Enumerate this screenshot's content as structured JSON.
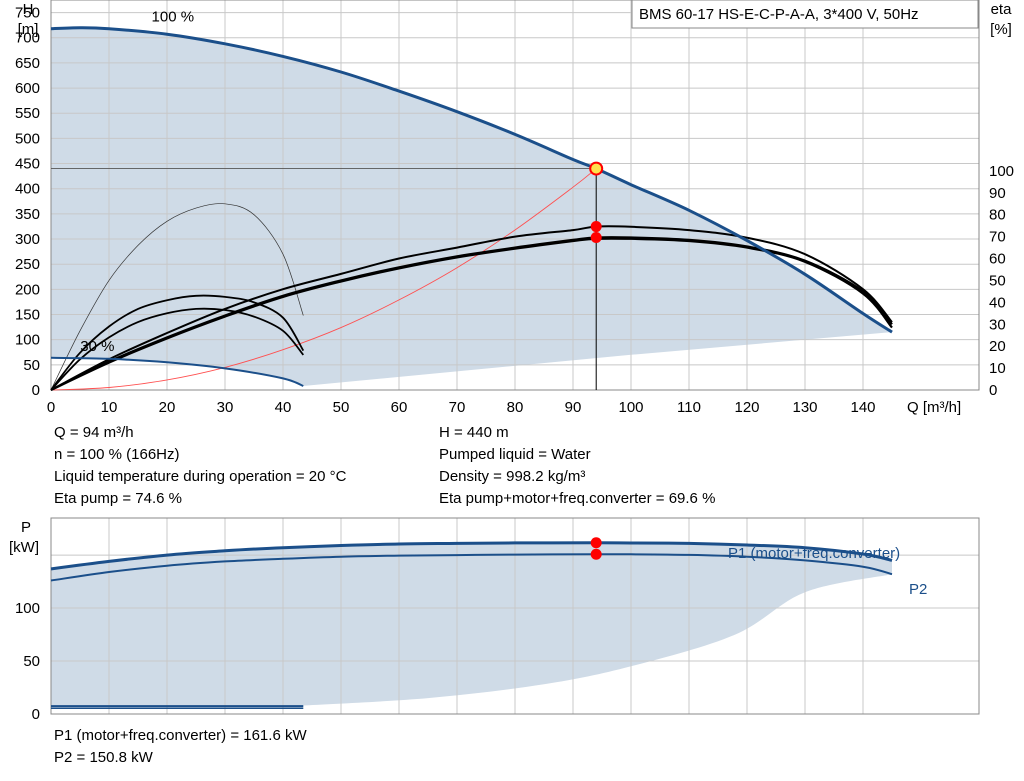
{
  "title_box": "BMS 60-17 HS-E-C-P-A-A, 3*400 V, 50Hz",
  "info": {
    "left": [
      "Q = 94 m³/h",
      "n = 100 % (166Hz)",
      "Liquid temperature during operation = 20 °C",
      "Eta pump = 74.6 %"
    ],
    "right": [
      "H = 440 m",
      "Pumped liquid = Water",
      "Density = 998.2 kg/m³",
      "Eta pump+motor+freq.converter = 69.6 %"
    ],
    "power": [
      "P1 (motor+freq.converter) = 161.6 kW",
      "P2 = 150.8 kW"
    ]
  },
  "colors": {
    "curve": "#1b4f8a",
    "area": "#cfdbe7",
    "grid": "#c8c8c8",
    "marker": "#ff0000",
    "system": "#ff5050"
  },
  "chart_data": [
    {
      "type": "line",
      "title": "BMS 60-17 HS-E-C-P-A-A, 3*400 V, 50Hz",
      "xlabel": "Q [m³/h]",
      "ylabel": "H [m]",
      "ylabel_unit": "[m]",
      "ylabel_name": "H",
      "y2label_name": "eta",
      "y2label_unit": "[%]",
      "xlim": [
        0,
        160
      ],
      "ylim": [
        0,
        775
      ],
      "y2lim": [
        0,
        178
      ],
      "xticks": [
        0,
        10,
        20,
        30,
        40,
        50,
        60,
        70,
        80,
        90,
        100,
        110,
        120,
        130,
        140
      ],
      "yticks": [
        0,
        50,
        100,
        150,
        200,
        250,
        300,
        350,
        400,
        450,
        500,
        550,
        600,
        650,
        700,
        750
      ],
      "y2ticks": [
        0,
        10,
        20,
        30,
        40,
        50,
        60,
        70,
        80,
        90,
        100
      ],
      "grid": true,
      "annotations": [
        {
          "text": "100 %",
          "x": 21,
          "y": 740
        },
        {
          "text": "30 %",
          "x": 8,
          "y": 85
        }
      ],
      "duty_point": {
        "x": 94,
        "y": 440
      },
      "eta_points": [
        {
          "x": 94,
          "y": 74.6
        },
        {
          "x": 94,
          "y": 69.6
        }
      ],
      "series": [
        {
          "role": "head_max",
          "axis": "left",
          "x": [
            0,
            5,
            10,
            20,
            30,
            40,
            50,
            60,
            70,
            80,
            90,
            94,
            100,
            110,
            120,
            130,
            140,
            145
          ],
          "y": [
            718,
            720,
            718,
            707,
            688,
            663,
            632,
            594,
            553,
            508,
            458,
            440,
            408,
            357,
            297,
            230,
            152,
            115
          ]
        },
        {
          "role": "head_min",
          "axis": "left",
          "x": [
            0,
            10,
            20,
            30,
            40,
            43.5
          ],
          "y": [
            64,
            62,
            55,
            43,
            23,
            8
          ]
        },
        {
          "role": "system_curve",
          "axis": "left",
          "x": [
            0,
            10,
            20,
            30,
            40,
            50,
            60,
            70,
            80,
            90,
            94
          ],
          "y": [
            0,
            5,
            20,
            45,
            80,
            124,
            179,
            243,
            318,
            403,
            440
          ]
        },
        {
          "role": "eta_pump_max",
          "axis": "right",
          "x": [
            0,
            10,
            20,
            30,
            40,
            50,
            60,
            70,
            80,
            90,
            94,
            100,
            110,
            120,
            130,
            140,
            145
          ],
          "y": [
            0,
            14,
            26,
            37,
            46,
            53,
            60,
            65,
            70,
            73,
            74.6,
            74.5,
            73,
            69.5,
            62,
            46,
            31
          ]
        },
        {
          "role": "eta_total_max",
          "axis": "right",
          "x": [
            0,
            10,
            20,
            30,
            40,
            50,
            60,
            70,
            80,
            90,
            94,
            100,
            110,
            120,
            130,
            140,
            145
          ],
          "y": [
            0,
            13,
            24,
            34,
            43,
            50,
            56,
            61,
            65,
            68.5,
            69.6,
            69.6,
            68.5,
            65.5,
            59,
            45,
            30
          ]
        },
        {
          "role": "eta_total_max_inner",
          "axis": "right",
          "x": [
            0,
            10,
            20,
            30,
            40,
            50,
            60,
            70,
            80,
            90,
            94,
            100,
            110,
            120,
            130,
            140,
            145
          ],
          "y": [
            0,
            12.5,
            23.5,
            33.5,
            42.5,
            49.5,
            55.5,
            60.5,
            64.5,
            68,
            69,
            69,
            68,
            65,
            58.5,
            44,
            28.5
          ]
        },
        {
          "role": "eta_pump_min",
          "axis": "right",
          "x": [
            0,
            5,
            10,
            15,
            20,
            25,
            30,
            35,
            40,
            43.5
          ],
          "y": [
            0,
            17,
            29,
            37,
            41,
            43,
            42.5,
            40,
            33,
            18
          ]
        },
        {
          "role": "eta_total_min",
          "axis": "right",
          "x": [
            0,
            5,
            10,
            15,
            20,
            25,
            30,
            35,
            40,
            43.5
          ],
          "y": [
            0,
            14,
            24,
            31,
            35,
            37,
            36.5,
            33.5,
            27,
            16
          ]
        },
        {
          "role": "eta_thin",
          "axis": "right",
          "x": [
            0,
            5,
            10,
            15,
            20,
            25,
            30,
            35,
            40,
            43.5
          ],
          "y": [
            0,
            27,
            50,
            66,
            77,
            83,
            85,
            80,
            62,
            34
          ]
        }
      ]
    },
    {
      "type": "line",
      "xlabel": "",
      "ylabel_name": "P",
      "ylabel_unit": "[kW]",
      "xlim": [
        0,
        160
      ],
      "ylim": [
        0,
        185
      ],
      "yticks": [
        0,
        50,
        100
      ],
      "grid": true,
      "duty_points": [
        {
          "x": 94,
          "y": 161.6
        },
        {
          "x": 94,
          "y": 150.8
        }
      ],
      "series": [
        {
          "name": "P1 (motor+freq.converter)",
          "axis": "left",
          "x": [
            0,
            10,
            20,
            30,
            40,
            50,
            60,
            70,
            80,
            94,
            100,
            110,
            120,
            130,
            140,
            145
          ],
          "y": [
            137,
            144,
            150,
            154,
            157,
            159,
            160.5,
            161,
            161.5,
            161.6,
            161.4,
            161,
            159.5,
            157,
            151,
            145
          ]
        },
        {
          "name": "P2",
          "axis": "left",
          "x": [
            0,
            10,
            20,
            30,
            40,
            50,
            60,
            70,
            80,
            94,
            100,
            110,
            120,
            130,
            140,
            145
          ],
          "y": [
            126,
            134,
            140,
            144,
            146.5,
            148.5,
            149.5,
            150,
            150.5,
            150.8,
            150.7,
            150.2,
            148.5,
            145,
            139,
            132
          ]
        },
        {
          "role": "p_min_outer",
          "axis": "left",
          "x": [
            0,
            43.5
          ],
          "y": [
            7.5,
            7.5
          ]
        },
        {
          "role": "p_min_inner",
          "axis": "left",
          "x": [
            0,
            43.5
          ],
          "y": [
            5.5,
            5.5
          ]
        }
      ]
    }
  ]
}
